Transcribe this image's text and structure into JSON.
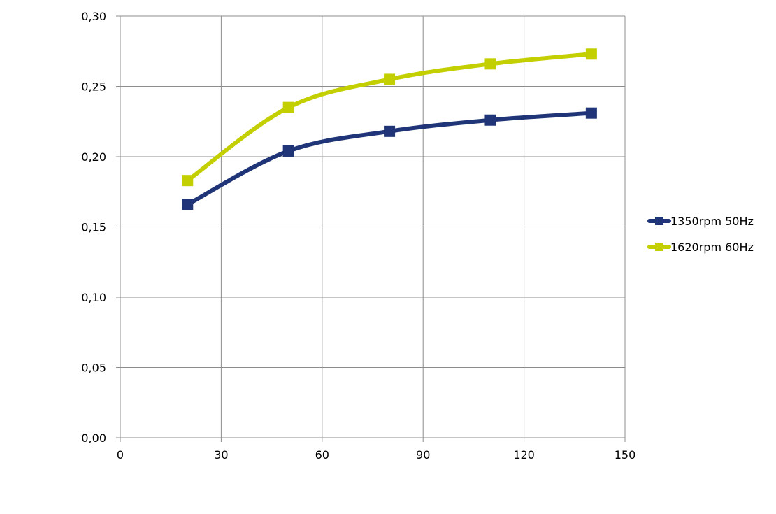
{
  "chart_data": {
    "type": "line",
    "title": "",
    "xlabel": "",
    "ylabel": "",
    "xlim": [
      0,
      150
    ],
    "ylim": [
      0,
      0.3
    ],
    "xticks": [
      0,
      30,
      60,
      90,
      120,
      150
    ],
    "xtick_labels": [
      "0",
      "30",
      "60",
      "90",
      "120",
      "150"
    ],
    "yticks": [
      0,
      0.05,
      0.1,
      0.15,
      0.2,
      0.25,
      0.3
    ],
    "ytick_labels": [
      "0,00",
      "0,05",
      "0,10",
      "0,15",
      "0,20",
      "0,25",
      "0,30"
    ],
    "grid": true,
    "smooth": true,
    "legend_position": "right",
    "series": [
      {
        "name": "1350rpm 50Hz",
        "color": "#1f3577",
        "marker": "square",
        "x": [
          20,
          50,
          80,
          110,
          140
        ],
        "y": [
          0.166,
          0.204,
          0.218,
          0.226,
          0.231
        ]
      },
      {
        "name": "1620rpm 60Hz",
        "color": "#c3cf00",
        "marker": "square",
        "x": [
          20,
          50,
          80,
          110,
          140
        ],
        "y": [
          0.183,
          0.235,
          0.255,
          0.266,
          0.273
        ]
      }
    ]
  }
}
